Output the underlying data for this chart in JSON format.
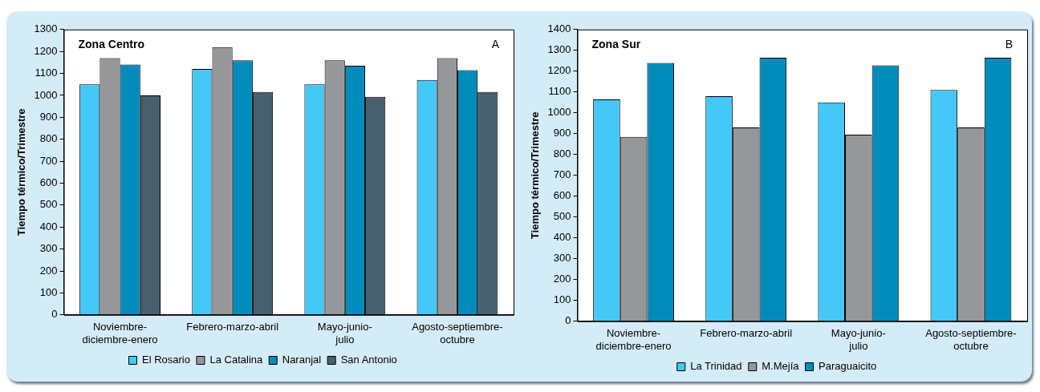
{
  "chart_data": [
    {
      "type": "bar",
      "title": "Zona Centro",
      "ylabel": "Tiempo térmico/Trimestre",
      "annotations": [
        "A"
      ],
      "categories": [
        "Noviembre-\ndiciembre-enero",
        "Febrero-marzo-abril",
        "Mayo-junio-\njulio",
        "Agosto-septiembre-\noctubre"
      ],
      "series": [
        {
          "name": "El Rosario",
          "color": "#44c8f5",
          "values": [
            1050,
            1120,
            1050,
            1070
          ]
        },
        {
          "name": "La Catalina",
          "color": "#96979b",
          "values": [
            1170,
            1220,
            1160,
            1170
          ]
        },
        {
          "name": "Naranjal",
          "color": "#008bba",
          "values": [
            1140,
            1160,
            1135,
            1115
          ]
        },
        {
          "name": "San Antonio",
          "color": "#48606e",
          "values": [
            1000,
            1015,
            993,
            1015
          ]
        }
      ],
      "ylim": [
        0,
        1300
      ],
      "yticks": [
        0,
        100,
        200,
        300,
        400,
        500,
        600,
        700,
        800,
        900,
        1000,
        1100,
        1200,
        1300
      ],
      "grid": false,
      "legend": "bottom"
    },
    {
      "type": "bar",
      "title": "Zona Sur",
      "ylabel": "Tiempo térmico/Trimestre",
      "annotations": [
        "B"
      ],
      "categories": [
        "Noviembre-\ndiciembre-enero",
        "Febrero-marzo-abril",
        "Mayo-junio-\njulio",
        "Agosto-septiembre-\noctubre"
      ],
      "series": [
        {
          "name": "La Trinidad",
          "color": "#44c8f5",
          "values": [
            1065,
            1080,
            1050,
            1110
          ]
        },
        {
          "name": "M.Mejía",
          "color": "#96979b",
          "values": [
            885,
            930,
            895,
            930
          ]
        },
        {
          "name": "Paraguaicito",
          "color": "#008bba",
          "values": [
            1240,
            1265,
            1228,
            1265
          ]
        }
      ],
      "ylim": [
        0,
        1400
      ],
      "yticks": [
        0,
        100,
        200,
        300,
        400,
        500,
        600,
        700,
        800,
        900,
        1000,
        1100,
        1200,
        1300,
        1400
      ],
      "grid": false,
      "legend": "bottom"
    }
  ]
}
